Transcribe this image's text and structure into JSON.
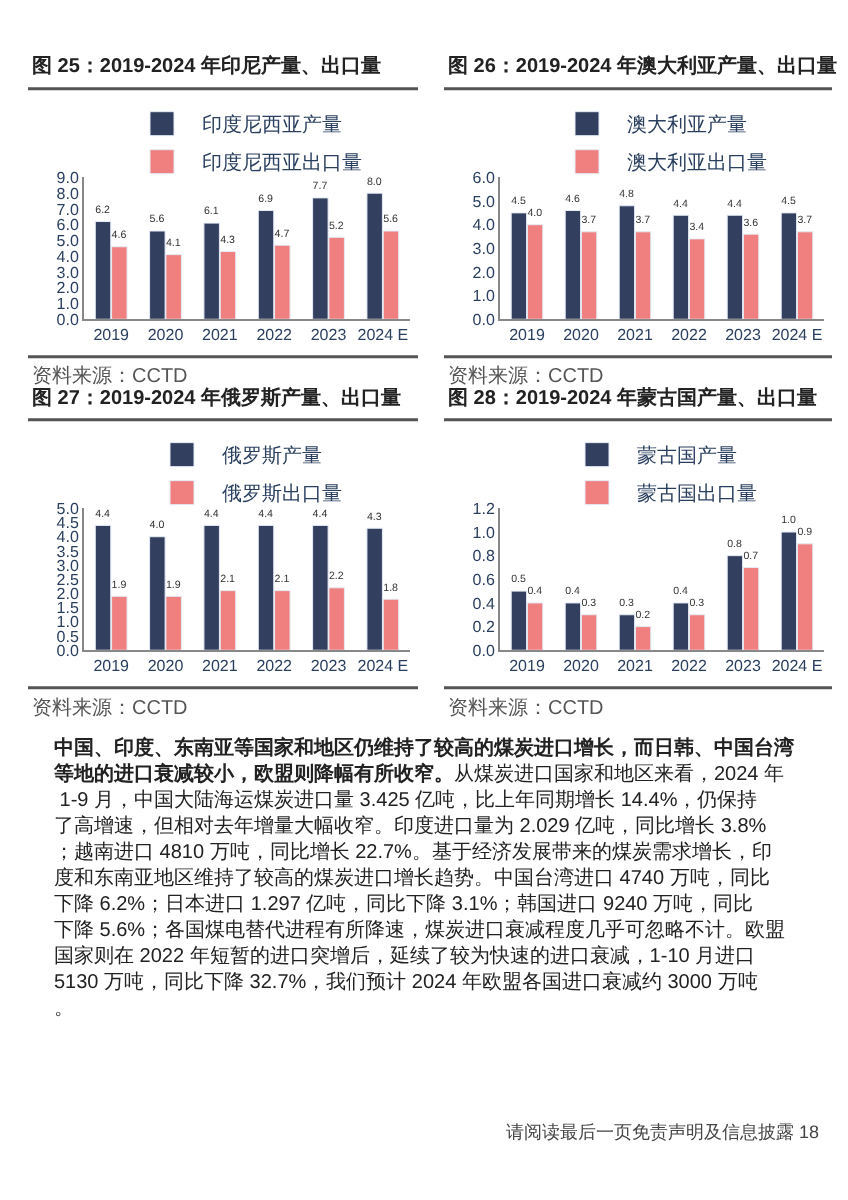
{
  "chart_data": [
    {
      "type": "bar",
      "title": "图 25：2019-2024 年印尼产量、出口量",
      "categories": [
        "2019",
        "2020",
        "2021",
        "2022",
        "2023",
        "2024 E"
      ],
      "series": [
        {
          "name": "印度尼西亚产量",
          "color": "#333f5e",
          "values": [
            6.2,
            5.6,
            6.1,
            6.9,
            7.7,
            8.0
          ],
          "value_labels": [
            "6.2",
            "5.6",
            "6.1",
            "6.9",
            "7.7",
            "8.0"
          ]
        },
        {
          "name": "印度尼西亚出口量",
          "color": "#f07f7f",
          "values": [
            4.6,
            4.1,
            4.3,
            4.7,
            5.2,
            5.6
          ],
          "value_labels": [
            "4.6",
            "4.1",
            "4.3",
            "4.7",
            "5.2",
            "5.6"
          ]
        }
      ],
      "ylim": [
        0,
        9
      ],
      "yticks": [
        {
          "value": 0,
          "label": "0.0"
        },
        {
          "value": 1,
          "label": "1.0"
        },
        {
          "value": 2,
          "label": "2.0"
        },
        {
          "value": 3,
          "label": "3.0"
        },
        {
          "value": 4,
          "label": "4.0"
        },
        {
          "value": 5,
          "label": "5.0"
        },
        {
          "value": 6,
          "label": "6.0"
        },
        {
          "value": 7,
          "label": "7.0"
        },
        {
          "value": 8,
          "label": "8.0"
        },
        {
          "value": 9,
          "label": "9.0"
        }
      ],
      "legend": "top",
      "annotations": [
        "资料来源：CCTD"
      ]
    },
    {
      "type": "bar",
      "title": "图 26：2019-2024 年澳大利亚产量、出口量",
      "categories": [
        "2019",
        "2020",
        "2021",
        "2022",
        "2023",
        "2024 E"
      ],
      "series": [
        {
          "name": "澳大利亚产量",
          "color": "#333f5e",
          "values": [
            4.5,
            4.6,
            4.8,
            4.4,
            4.4,
            4.5
          ],
          "value_labels": [
            "4.5",
            "4.6",
            "4.8",
            "4.4",
            "4.4",
            "4.5"
          ]
        },
        {
          "name": "澳大利亚出口量",
          "color": "#f07f7f",
          "values": [
            4.0,
            3.7,
            3.7,
            3.4,
            3.6,
            3.7
          ],
          "value_labels": [
            "4.0",
            "3.7",
            "3.7",
            "3.4",
            "3.6",
            "3.7"
          ]
        }
      ],
      "ylim": [
        0,
        6
      ],
      "yticks": [
        {
          "value": 0,
          "label": "0.0"
        },
        {
          "value": 1,
          "label": "1.0"
        },
        {
          "value": 2,
          "label": "2.0"
        },
        {
          "value": 3,
          "label": "3.0"
        },
        {
          "value": 4,
          "label": "4.0"
        },
        {
          "value": 5,
          "label": "5.0"
        },
        {
          "value": 6,
          "label": "6.0"
        }
      ],
      "legend": "top",
      "annotations": [
        "资料来源：CCTD"
      ]
    },
    {
      "type": "bar",
      "title": "图 27：2019-2024 年俄罗斯产量、出口量",
      "categories": [
        "2019",
        "2020",
        "2021",
        "2022",
        "2023",
        "2024 E"
      ],
      "series": [
        {
          "name": "俄罗斯产量",
          "color": "#333f5e",
          "values": [
            4.4,
            4.0,
            4.4,
            4.4,
            4.4,
            4.3
          ],
          "value_labels": [
            "4.4",
            "4.0",
            "4.4",
            "4.4",
            "4.4",
            "4.3"
          ]
        },
        {
          "name": "俄罗斯出口量",
          "color": "#f07f7f",
          "values": [
            1.9,
            1.9,
            2.1,
            2.1,
            2.2,
            1.8
          ],
          "value_labels": [
            "1.9",
            "1.9",
            "2.1",
            "2.1",
            "2.2",
            "1.8"
          ]
        }
      ],
      "ylim": [
        0,
        5
      ],
      "yticks": [
        {
          "value": 0,
          "label": "0.0"
        },
        {
          "value": 0.5,
          "label": "0.5"
        },
        {
          "value": 1,
          "label": "1.0"
        },
        {
          "value": 1.5,
          "label": "1.5"
        },
        {
          "value": 2,
          "label": "2.0"
        },
        {
          "value": 2.5,
          "label": "2.5"
        },
        {
          "value": 3,
          "label": "3.0"
        },
        {
          "value": 3.5,
          "label": "3.5"
        },
        {
          "value": 4,
          "label": "4.0"
        },
        {
          "value": 4.5,
          "label": "4.5"
        },
        {
          "value": 5,
          "label": "5.0"
        }
      ],
      "legend": "top",
      "annotations": [
        "资料来源：CCTD"
      ]
    },
    {
      "type": "bar",
      "title": "图 28：2019-2024 年蒙古国产量、出口量",
      "categories": [
        "2019",
        "2020",
        "2021",
        "2022",
        "2023",
        "2024 E"
      ],
      "series": [
        {
          "name": "蒙古国产量",
          "color": "#333f5e",
          "values": [
            0.5,
            0.4,
            0.3,
            0.4,
            0.8,
            1.0
          ],
          "value_labels": [
            "0.5",
            "0.4",
            "0.3",
            "0.4",
            "0.8",
            "1.0"
          ]
        },
        {
          "name": "蒙古国出口量",
          "color": "#f07f7f",
          "values": [
            0.4,
            0.3,
            0.2,
            0.3,
            0.7,
            0.9
          ],
          "value_labels": [
            "0.4",
            "0.3",
            "0.2",
            "0.3",
            "0.7",
            "0.9"
          ]
        }
      ],
      "ylim": [
        0,
        1.2
      ],
      "yticks": [
        {
          "value": 0,
          "label": "0.0"
        },
        {
          "value": 0.2,
          "label": "0.2"
        },
        {
          "value": 0.4,
          "label": "0.4"
        },
        {
          "value": 0.6,
          "label": "0.6"
        },
        {
          "value": 0.8,
          "label": "0.8"
        },
        {
          "value": 1.0,
          "label": "1.0"
        },
        {
          "value": 1.2,
          "label": "1.2"
        }
      ],
      "legend": "top",
      "annotations": [
        "资料来源：CCTD"
      ]
    },
    {
      "type": "other",
      "annotations": [
        "中国、印度、东南亚等国家和地区仍维持了较高的煤炭进口增长，而日韩、中国台湾等地的进口衰减较小，欧盟则降幅有所收窄。",
        "从煤炭进口国家和地区来看，2024 年 1-9 月，中国大陆海运煤炭进口量 3.425 亿吨，比上年同期增长 14.4%，仍保持了高增速，但相对去年增量大幅收窄。印度进口量为 2.029 亿吨，同比增长 3.8%；越南进口 4810 万吨，同比增长 22.7%。基于经济发展带来的煤炭需求增长，印度和东南亚地区维持了较高的煤炭进口增长趋势。中国台湾进口 4740 万吨，同比下降 6.2%；日本进口 1.297 亿吨，同比下降 3.1%；韩国进口 9240 万吨，同比下降 5.6%；各国煤电替代进程有所降速，煤炭进口衰减程度几乎可忽略不计。欧盟国家则在 2022 年短暂的进口突增后，延续了较为快速的进口衰减，1-10 月进口 5130 万吨，同比下降 32.7%，我们预计 2024 年欧盟各国进口衰减约 3000 万吨。",
        "请阅读最后一页免责声明及信息披露 18"
      ]
    }
  ]
}
